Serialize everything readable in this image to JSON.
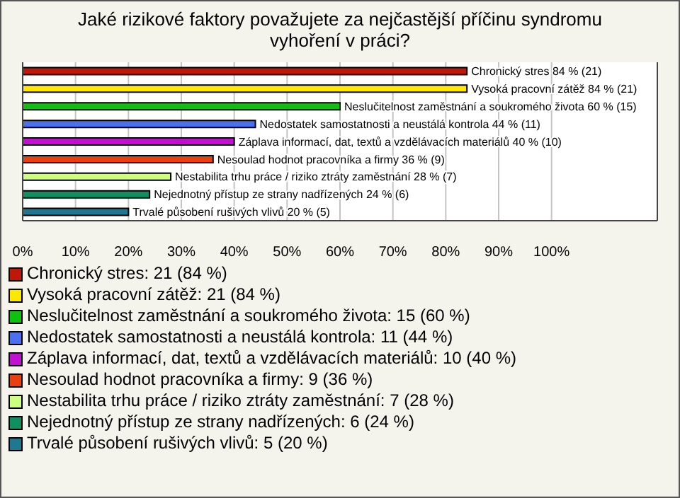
{
  "chart_data": {
    "type": "bar",
    "orientation": "horizontal",
    "title": "Jaké rizikové faktory považujete za nejčastější příčinu syndromu vyhoření v práci?",
    "categories": [
      null,
      null,
      null,
      null,
      null,
      null,
      null,
      null,
      null
    ],
    "values": [
      84,
      84,
      60,
      44,
      40,
      36,
      28,
      24,
      20
    ],
    "colors": [
      "#c01808",
      "#ffe800",
      "#10c010",
      "#4a70f0",
      "#c010d0",
      "#e84010",
      "#ccff80",
      "#109060",
      "#207890"
    ],
    "value_labels": [
      "Chronický stres 84 % (21)",
      "Vysoká pracovní zátěž 84 % (21)",
      "Neslučitelnost zaměstnání a soukromého života 60 % (15)",
      "Nedostatek samostatnosti a neustálá kontrola 44 % (11)",
      "Záplava informací, dat, textů a vzdělávacích materiálů 40 % (10)",
      "Nesoulad hodnot pracovníka a firmy 36 % (9)",
      "Nestabilita trhu práce / riziko ztráty zaměstnání 28 % (7)",
      "Nejednotný přístup ze strany nadřízených 24 % (6)",
      "Trvalé působení rušivých vlivů 20 % (5)"
    ],
    "annotations": [
      "Chronický stres: 21 (84 %)",
      "Vysoká pracovní zátěž: 21 (84 %)",
      "Neslučitelnost zaměstnání a soukromého života: 15 (60 %)",
      "Nedostatek samostatnosti a neustálá kontrola: 11 (44 %)",
      "Záplava informací, dat, textů a vzdělávacích materiálů: 10 (40 %)",
      "Nesoulad hodnot pracovníka a firmy: 9 (36 %)",
      "Nestabilita trhu práce / riziko ztráty zaměstnání: 7 (28 %)",
      "Nejednotný přístup ze strany nadřízených: 6 (24 %)",
      "Trvalé působení rušivých vlivů: 5 (20 %)"
    ],
    "xlim": [
      0,
      120
    ],
    "xticks": [
      {
        "value": 0,
        "label": "0%"
      },
      {
        "value": 10,
        "label": "10%"
      },
      {
        "value": 20,
        "label": "20%"
      },
      {
        "value": 30,
        "label": "30%"
      },
      {
        "value": 40,
        "label": "40%"
      },
      {
        "value": 50,
        "label": "50%"
      },
      {
        "value": 60,
        "label": "60%"
      },
      {
        "value": 70,
        "label": "70%"
      },
      {
        "value": 80,
        "label": "80%"
      },
      {
        "value": 90,
        "label": "90%"
      },
      {
        "value": 100,
        "label": "100%"
      }
    ],
    "grid": "x",
    "tick_labels": "x"
  }
}
